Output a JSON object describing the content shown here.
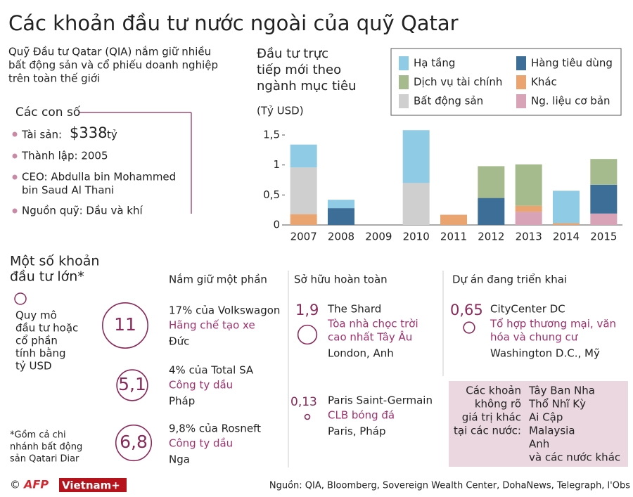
{
  "title": "Các khoản đầu tư nước ngoài của quỹ Qatar",
  "intro": [
    "Quỹ Đầu tư Qatar (QIA) nắm giữ nhiều",
    "bất động sản và cổ phiếu doanh nghiệp",
    "trên toàn thế giới"
  ],
  "facts": {
    "heading": "Các con số",
    "assets": {
      "label": "Tài sản:",
      "amount": "$338",
      "unit": "tỷ"
    },
    "items": [
      [
        "Thành lập: 2005"
      ],
      [
        "CEO: Abdulla bin Mohammed",
        "bin Saud Al Thani"
      ],
      [
        "Nguồn quỹ: Dầu và khí"
      ]
    ]
  },
  "chart_data": {
    "type": "bar",
    "stacked": true,
    "title": [
      "Đầu tư trực",
      "tiếp mới theo",
      "ngành mục tiêu"
    ],
    "ylabel": "(Tỷ USD)",
    "categories": [
      "2007",
      "2008",
      "2009",
      "2010",
      "2011",
      "2012",
      "2013",
      "2014",
      "2015"
    ],
    "series": [
      {
        "name": "Hạ tầng",
        "color": "#8fcbe5",
        "values": [
          0.38,
          0.14,
          null,
          0.88,
          null,
          null,
          null,
          0.54,
          null
        ]
      },
      {
        "name": "Hàng tiêu dùng",
        "color": "#3c6e98",
        "values": [
          null,
          0.28,
          null,
          null,
          null,
          0.45,
          null,
          null,
          0.48
        ]
      },
      {
        "name": "Dịch vụ tài chính",
        "color": "#a5bb8e",
        "values": [
          null,
          null,
          null,
          null,
          null,
          0.53,
          0.69,
          null,
          0.43
        ]
      },
      {
        "name": "Khác",
        "color": "#e9a46f",
        "values": [
          0.18,
          null,
          null,
          null,
          0.17,
          null,
          0.1,
          0.03,
          null
        ]
      },
      {
        "name": "Bất động sản",
        "color": "#cfcfcf",
        "values": [
          0.78,
          null,
          null,
          0.7,
          null,
          null,
          null,
          null,
          null
        ]
      },
      {
        "name": "Ng. liệu cơ bản",
        "color": "#d8a3b6",
        "values": [
          null,
          null,
          null,
          null,
          null,
          null,
          0.22,
          null,
          0.19
        ]
      }
    ],
    "ylim": [
      0,
      1.6
    ],
    "yticks": [
      0,
      {
        "value": 0.5,
        "label": "0,5"
      },
      1,
      {
        "value": 1.5,
        "label": "1,5"
      }
    ],
    "grid": false
  },
  "major": {
    "heading": [
      "Một số khoản",
      "đầu tư lớn*"
    ],
    "key": [
      "Quy mô",
      "đầu tư hoặc",
      "cổ phần",
      "tính bằng",
      "tỷ USD"
    ],
    "footnote": [
      "*Gồm cả chi",
      "nhánh bất động",
      "sản Qatari Diar"
    ],
    "columns": [
      {
        "heading": "Nắm giữ một phần",
        "items": [
          {
            "value": 11,
            "value_label": "11",
            "name": "17% của Volkswagon",
            "desc": [
              "Hãng chế tạo xe"
            ],
            "place": "Đức"
          },
          {
            "value": 5.1,
            "value_label": "5,1",
            "name": "4% của Total SA",
            "desc": [
              "Công ty dầu"
            ],
            "place": "Pháp"
          },
          {
            "value": 6.8,
            "value_label": "6,8",
            "name": "9,8% của Rosneft",
            "desc": [
              "Công ty dầu"
            ],
            "place": "Nga"
          }
        ]
      },
      {
        "heading": "Sở hữu hoàn toàn",
        "items": [
          {
            "value": 1.9,
            "value_label": "1,9",
            "name": "The Shard",
            "desc": [
              "Tòa nhà chọc trời",
              "cao nhất Tây Âu"
            ],
            "place": "London, Anh"
          },
          {
            "value": 0.13,
            "value_label": "0,13",
            "name": "Paris Saint-Germain",
            "desc": [
              "CLB bóng đá"
            ],
            "place": "Paris, Pháp"
          }
        ]
      },
      {
        "heading": "Dự án đang triển khai",
        "items": [
          {
            "value": 0.65,
            "value_label": "0,65",
            "name": "CityCenter DC",
            "desc": [
              "Tổ hợp thương mại, văn",
              "hóa và chung cư"
            ],
            "place": "Washington D.C., Mỹ"
          }
        ]
      }
    ],
    "other": {
      "label": [
        "Các khoản",
        "không rõ",
        "giá trị khác",
        "tại các nước:"
      ],
      "countries": [
        "Tây Ban Nha",
        "Thổ Nhĩ Kỳ",
        "Ai Cập",
        "Malaysia",
        "Anh",
        "và các nước khác"
      ]
    }
  },
  "footer": {
    "copyright": "©",
    "logos": [
      "AFP",
      "Vietnam+"
    ],
    "source": "Nguồn: QIA, Bloomberg, Sovereign Wealth Center, DohaNews, Telegraph, l'Obs"
  }
}
